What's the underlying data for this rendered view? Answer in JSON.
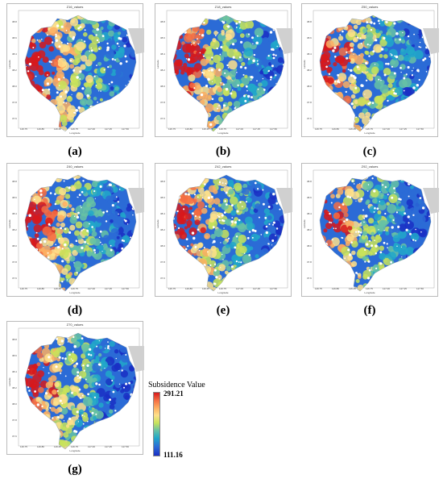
{
  "panels": [
    {
      "title": "Z16_values",
      "caption": "(a)"
    },
    {
      "title": "Z18_values",
      "caption": "(b)"
    },
    {
      "title": "Z50_values",
      "caption": "(c)"
    },
    {
      "title": "Z40_values",
      "caption": "(d)"
    },
    {
      "title": "Z42_values",
      "caption": "(e)"
    },
    {
      "title": "Z92_values",
      "caption": "(f)"
    },
    {
      "title": "Z70_values",
      "caption": "(g)"
    }
  ],
  "axes": {
    "xlabel": "Longitude",
    "ylabel": "Latitude",
    "xticks": [
      "116.75",
      "116.80",
      "116.25",
      "116.75",
      "117.00",
      "117.25",
      "117.50"
    ],
    "yticks": [
      "38.8",
      "38.6",
      "38.4",
      "38.2",
      "38.0",
      "37.8",
      "37.6"
    ]
  },
  "legend": {
    "title": "Subsidence  Value",
    "max": "291.21",
    "min": "111.16",
    "colors": [
      "#d7191c",
      "#f46d43",
      "#fdae61",
      "#fee08b",
      "#c8e35a",
      "#66c2a5",
      "#21a8c9",
      "#2b6bd6",
      "#1a2fc4"
    ]
  },
  "sea_color": "#d0d0d0"
}
